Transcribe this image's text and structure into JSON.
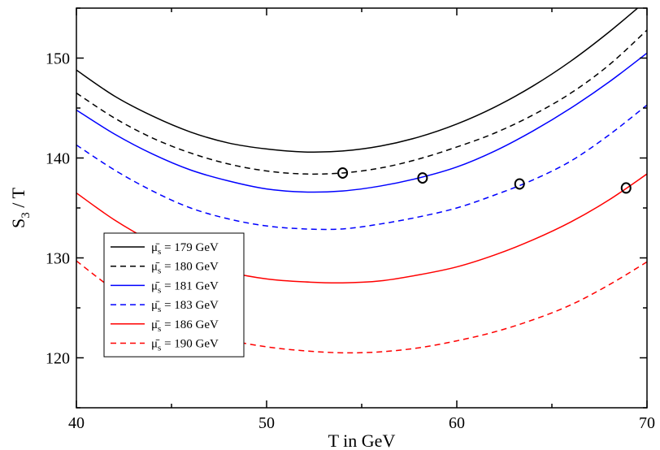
{
  "chart_data": {
    "type": "line",
    "title": "",
    "xlabel": "T in GeV",
    "ylabel_main": "S",
    "ylabel_sub": "3",
    "ylabel_tail": " / T",
    "xlim": [
      40,
      70
    ],
    "ylim": [
      115,
      155
    ],
    "xticks": [
      40,
      50,
      60,
      70
    ],
    "yticks": [
      120,
      130,
      140,
      150
    ],
    "grid": false,
    "legend_position": "lower-left",
    "legend_symbol": "μ̄",
    "legend_sub": "s",
    "series": [
      {
        "name": "179 GeV",
        "color": "#000000",
        "dash": "solid",
        "x": [
          40,
          42,
          44,
          46,
          48,
          50,
          52,
          54,
          56,
          58,
          60,
          62,
          64,
          66,
          68,
          70
        ],
        "y": [
          148.8,
          146.2,
          144.2,
          142.6,
          141.5,
          140.9,
          140.6,
          140.7,
          141.2,
          142.1,
          143.4,
          145.1,
          147.2,
          149.7,
          152.6,
          155.8
        ]
      },
      {
        "name": "180 GeV",
        "color": "#000000",
        "dash": "dashed",
        "x": [
          40,
          42,
          44,
          46,
          48,
          50,
          52,
          54,
          56,
          58,
          60,
          62,
          64,
          66,
          68,
          70
        ],
        "y": [
          146.5,
          144.0,
          142.0,
          140.5,
          139.4,
          138.7,
          138.4,
          138.5,
          139.0,
          139.9,
          141.1,
          142.5,
          144.3,
          146.5,
          149.3,
          152.8
        ]
      },
      {
        "name": "181 GeV",
        "color": "#0000ff",
        "dash": "solid",
        "x": [
          40,
          42,
          44,
          46,
          48,
          50,
          52,
          54,
          56,
          58,
          60,
          62,
          64,
          66,
          68,
          70
        ],
        "y": [
          144.8,
          142.4,
          140.4,
          138.8,
          137.7,
          136.9,
          136.6,
          136.7,
          137.2,
          138.0,
          139.1,
          140.7,
          142.7,
          145.0,
          147.6,
          150.5
        ]
      },
      {
        "name": "183 GeV",
        "color": "#0000ff",
        "dash": "dashed",
        "x": [
          40,
          42,
          44,
          46,
          48,
          50,
          52,
          54,
          56,
          58,
          60,
          62,
          64,
          66,
          68,
          70
        ],
        "y": [
          141.3,
          138.8,
          136.7,
          135.0,
          133.9,
          133.2,
          132.9,
          132.9,
          133.4,
          134.1,
          135.0,
          136.3,
          137.8,
          139.7,
          142.3,
          145.3
        ]
      },
      {
        "name": "186 GeV",
        "color": "#ff0000",
        "dash": "solid",
        "x": [
          40,
          42,
          44,
          46,
          48,
          50,
          52,
          54,
          56,
          58,
          60,
          62,
          64,
          66,
          68,
          70
        ],
        "y": [
          136.5,
          133.8,
          131.6,
          129.8,
          128.6,
          127.9,
          127.6,
          127.5,
          127.7,
          128.3,
          129.1,
          130.3,
          131.8,
          133.6,
          135.8,
          138.4
        ]
      },
      {
        "name": "190 GeV",
        "color": "#ff0000",
        "dash": "dashed",
        "x": [
          40,
          42,
          44,
          46,
          48,
          50,
          52,
          54,
          56,
          58,
          60,
          62,
          64,
          66,
          68,
          70
        ],
        "y": [
          129.7,
          126.8,
          124.6,
          123.0,
          121.8,
          121.1,
          120.7,
          120.5,
          120.6,
          121.0,
          121.7,
          122.6,
          123.8,
          125.3,
          127.3,
          129.6
        ]
      }
    ],
    "markers": {
      "shape": "circle-open",
      "points": [
        {
          "x": 54.0,
          "y": 138.5
        },
        {
          "x": 58.2,
          "y": 138.0
        },
        {
          "x": 63.3,
          "y": 137.4
        },
        {
          "x": 68.9,
          "y": 137.0
        }
      ]
    }
  }
}
